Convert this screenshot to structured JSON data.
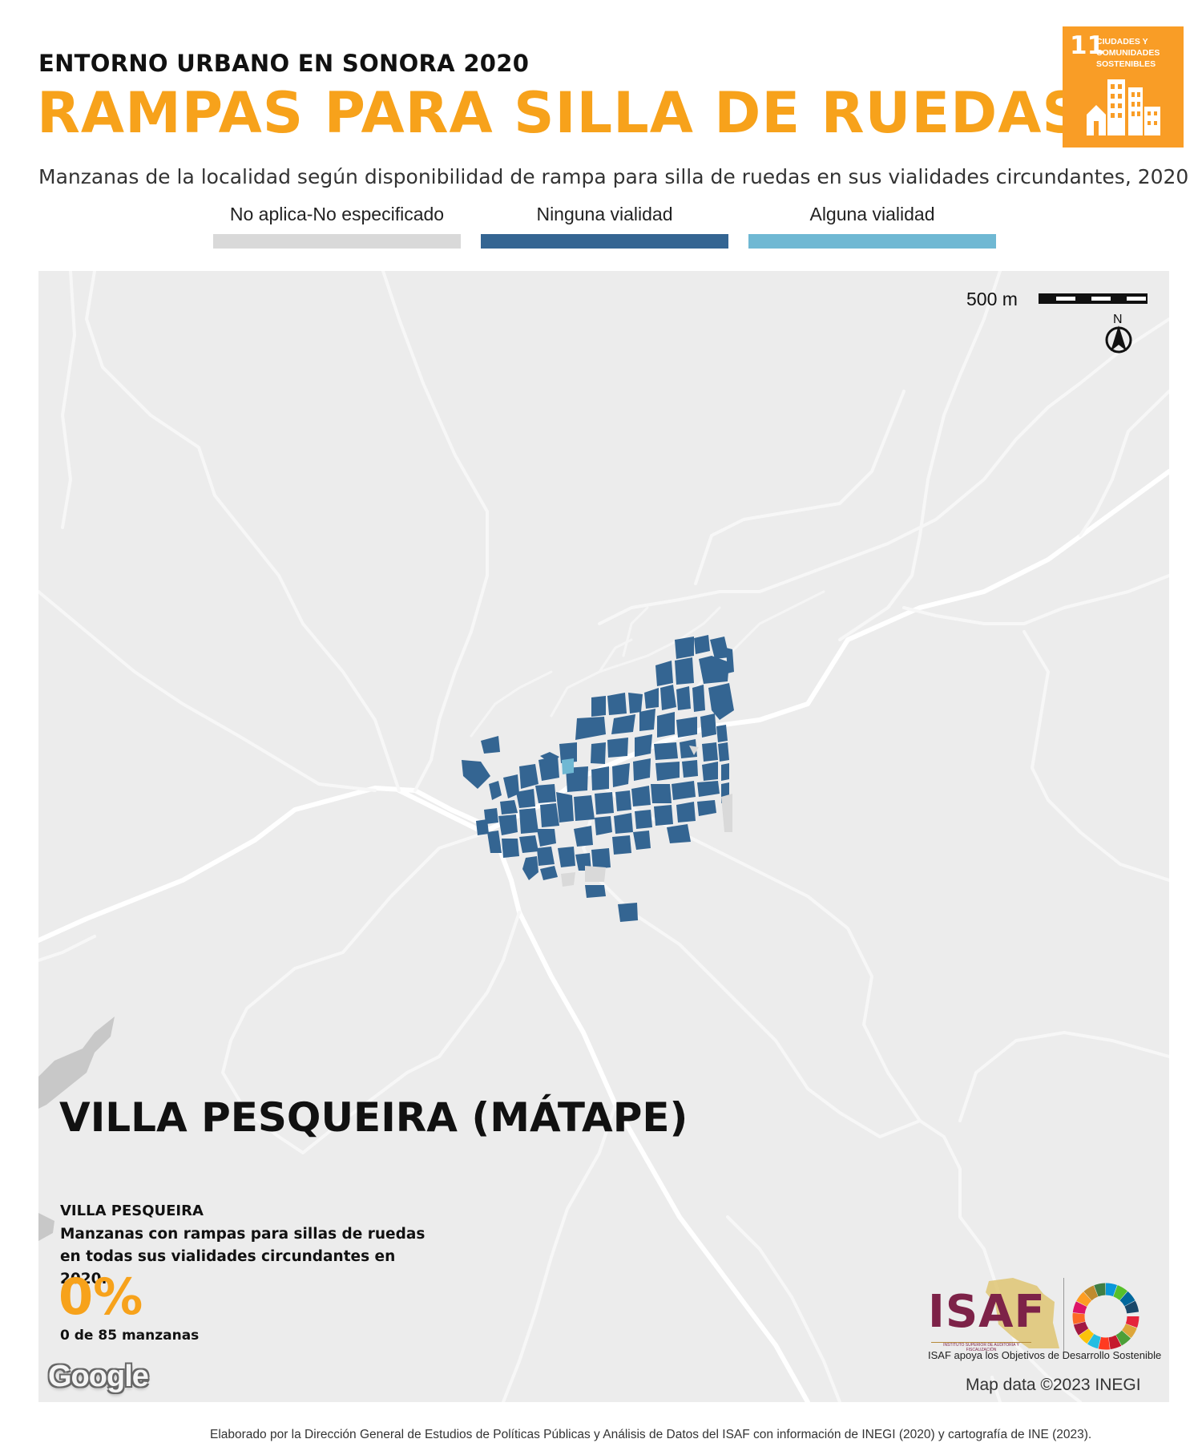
{
  "header": {
    "kicker": "ENTORNO URBANO EN SONORA 2020",
    "title": "RAMPAS PARA SILLA DE RUEDAS",
    "subtitle": "Manzanas de la localidad según disponibilidad de rampa para silla de ruedas en sus vialidades circundantes, 2020"
  },
  "sdg_badge": {
    "number": "11",
    "text": "CIUDADES Y COMUNIDADES SOSTENIBLES",
    "color": "#f99d26"
  },
  "legend": [
    {
      "label": "No aplica-No especificado",
      "color": "#d9d9d9"
    },
    {
      "label": "Ninguna vialidad",
      "color": "#346592"
    },
    {
      "label": "Alguna vialidad",
      "color": "#6fb8d3"
    }
  ],
  "map": {
    "scale_label": "500 m",
    "north_label": "N",
    "locality_name": "VILLA PESQUEIRA (MÁTAPE)",
    "municipality": "VILLA PESQUEIRA",
    "stat_description": "Manzanas con rampas para sillas de ruedas en todas sus vialidades circundantes en 2020.",
    "stat_percent": "0%",
    "stat_count": "0 de 85 manzanas",
    "google_logo": "Google",
    "attribution": "Map data ©2023 INEGI",
    "background_color": "#ececec",
    "road_color": "#ffffff",
    "block_color": "#346592",
    "ramp_block_color": "#6fb8d3",
    "na_block_color": "#d9d9d9"
  },
  "isaf": {
    "logo_text": "ISAF",
    "logo_subtext": "INSTITUTO SUPERIOR DE AUDITORÍA Y FISCALIZACIÓN",
    "caption": "ISAF apoya los Objetivos de Desarrollo Sostenible",
    "brand_color": "#7d2248"
  },
  "footer": {
    "note": "Elaborado por la Dirección General de Estudios de Políticas Públicas y Análisis de Datos del ISAF con información de INEGI (2020) y cartografía de INE (2023)."
  }
}
